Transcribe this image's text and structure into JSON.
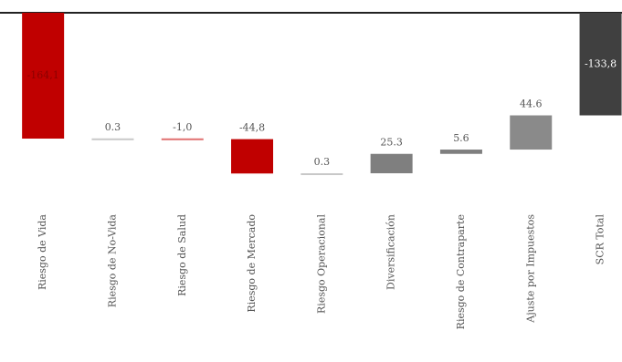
{
  "chart_data": {
    "type": "waterfall",
    "categories": [
      "Riesgo de Vida",
      "Riesgo de No-Vida",
      "Riesgo de Salud",
      "Riesgo de Mercado",
      "Riesgo Operacional",
      "Diversificación",
      "Riesgo de Contraparte",
      "Ajuste por Impuestos",
      "SCR Total"
    ],
    "values": [
      -164.1,
      0.3,
      -1.0,
      -44.8,
      0.3,
      25.3,
      5.6,
      44.6,
      -133.8
    ],
    "value_labels": [
      "-164,1",
      "0.3",
      "-1,0",
      "-44,8",
      "0.3",
      "25.3",
      "5.6",
      "44.6",
      "-133,8"
    ],
    "is_total": [
      false,
      false,
      false,
      false,
      false,
      false,
      false,
      false,
      true
    ],
    "colors": [
      "#c00000",
      "#c8c8c8",
      "#e07070",
      "#c00000",
      "#c8c8c8",
      "#7f7f7f",
      "#7f7f7f",
      "#8a8a8a",
      "#404040"
    ],
    "ylim": [
      -210,
      0
    ]
  }
}
